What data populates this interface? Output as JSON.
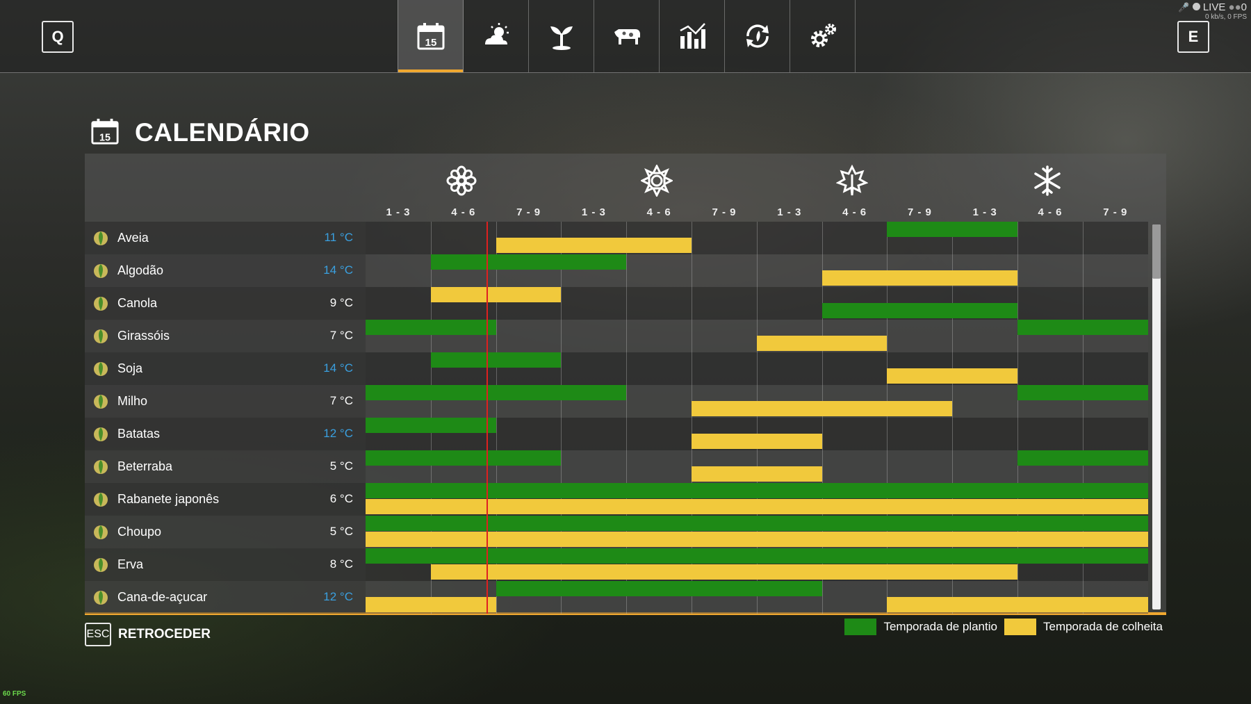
{
  "topbar": {
    "left_key": "Q",
    "right_key": "E",
    "calendar_day": "15",
    "tabs": [
      {
        "icon": "calendar-icon",
        "active": true
      },
      {
        "icon": "weather-icon",
        "active": false
      },
      {
        "icon": "crop-sprout-icon",
        "active": false
      },
      {
        "icon": "cow-icon",
        "active": false
      },
      {
        "icon": "statistics-icon",
        "active": false
      },
      {
        "icon": "cycle-icon",
        "active": false
      },
      {
        "icon": "settings-icon",
        "active": false
      }
    ],
    "live_label": "LIVE",
    "viewers": "0",
    "net_stats": "0 kb/s, 0 FPS"
  },
  "page": {
    "title": "CALENDÁRIO",
    "calendar_day": "15"
  },
  "calendar": {
    "seasons": [
      "spring-flower-icon",
      "summer-sun-icon",
      "autumn-leaf-icon",
      "winter-snowflake-icon"
    ],
    "months": [
      "1 - 3",
      "4 - 6",
      "7 - 9",
      "1 - 3",
      "4 - 6",
      "7 - 9",
      "1 - 3",
      "4 - 6",
      "7 - 9",
      "1 - 3",
      "4 - 6",
      "7 - 9"
    ],
    "current_position": 1.85,
    "crops": [
      {
        "name": "Aveia",
        "temp": "11 °C",
        "hot": true,
        "icon": "oat-icon",
        "plant": [
          [
            8,
            10
          ]
        ],
        "harvest": [
          [
            2,
            5
          ]
        ]
      },
      {
        "name": "Algodão",
        "temp": "14 °C",
        "hot": true,
        "icon": "cotton-icon",
        "plant": [
          [
            1,
            4
          ]
        ],
        "harvest": [
          [
            7,
            10
          ]
        ]
      },
      {
        "name": "Canola",
        "temp": "9 °C",
        "hot": false,
        "icon": "canola-icon",
        "plant": [
          [
            7,
            10
          ]
        ],
        "harvest": [
          [
            1,
            3
          ]
        ],
        "plant_lower": true,
        "harvest_upper": true
      },
      {
        "name": "Girassóis",
        "temp": "7 °C",
        "hot": false,
        "icon": "sunflower-icon",
        "plant": [
          [
            0,
            2
          ],
          [
            10,
            12
          ]
        ],
        "harvest": [
          [
            6,
            8
          ]
        ]
      },
      {
        "name": "Soja",
        "temp": "14 °C",
        "hot": true,
        "icon": "soybean-icon",
        "plant": [
          [
            1,
            3
          ]
        ],
        "harvest": [
          [
            8,
            10
          ]
        ]
      },
      {
        "name": "Milho",
        "temp": "7 °C",
        "hot": false,
        "icon": "corn-icon",
        "plant": [
          [
            0,
            4
          ],
          [
            10,
            12
          ]
        ],
        "harvest": [
          [
            5,
            9
          ]
        ]
      },
      {
        "name": "Batatas",
        "temp": "12 °C",
        "hot": true,
        "icon": "potato-icon",
        "plant": [
          [
            0,
            2
          ]
        ],
        "harvest": [
          [
            5,
            7
          ]
        ]
      },
      {
        "name": "Beterraba",
        "temp": "5 °C",
        "hot": false,
        "icon": "beet-icon",
        "plant": [
          [
            0,
            3
          ],
          [
            10,
            12
          ]
        ],
        "harvest": [
          [
            5,
            7
          ]
        ]
      },
      {
        "name": "Rabanete japonês",
        "temp": "6 °C",
        "hot": false,
        "icon": "radish-icon",
        "plant": [
          [
            0,
            12
          ]
        ],
        "harvest": [
          [
            0,
            12
          ]
        ]
      },
      {
        "name": "Choupo",
        "temp": "5 °C",
        "hot": false,
        "icon": "poplar-icon",
        "plant": [
          [
            0,
            12
          ]
        ],
        "harvest": [
          [
            0,
            12
          ]
        ]
      },
      {
        "name": "Erva",
        "temp": "8 °C",
        "hot": false,
        "icon": "grass-icon",
        "plant": [
          [
            0,
            12
          ]
        ],
        "harvest": [
          [
            1,
            10
          ]
        ]
      },
      {
        "name": "Cana-de-açucar",
        "temp": "12 °C",
        "hot": true,
        "icon": "sugarcane-icon",
        "plant": [
          [
            2,
            7
          ]
        ],
        "harvest": [
          [
            0,
            2
          ],
          [
            8,
            12
          ]
        ]
      }
    ]
  },
  "footer": {
    "esc_key": "ESC",
    "back_label": "RETROCEDER",
    "legend_plant": "Temporada de plantio",
    "legend_harvest": "Temporada de colheita"
  },
  "colors": {
    "plant": "#1e8a16",
    "harvest": "#f1c93c",
    "accent": "#f0a830",
    "today_line": "#e02020",
    "hot_temp": "#3aa0e0"
  },
  "fps": "60 FPS"
}
